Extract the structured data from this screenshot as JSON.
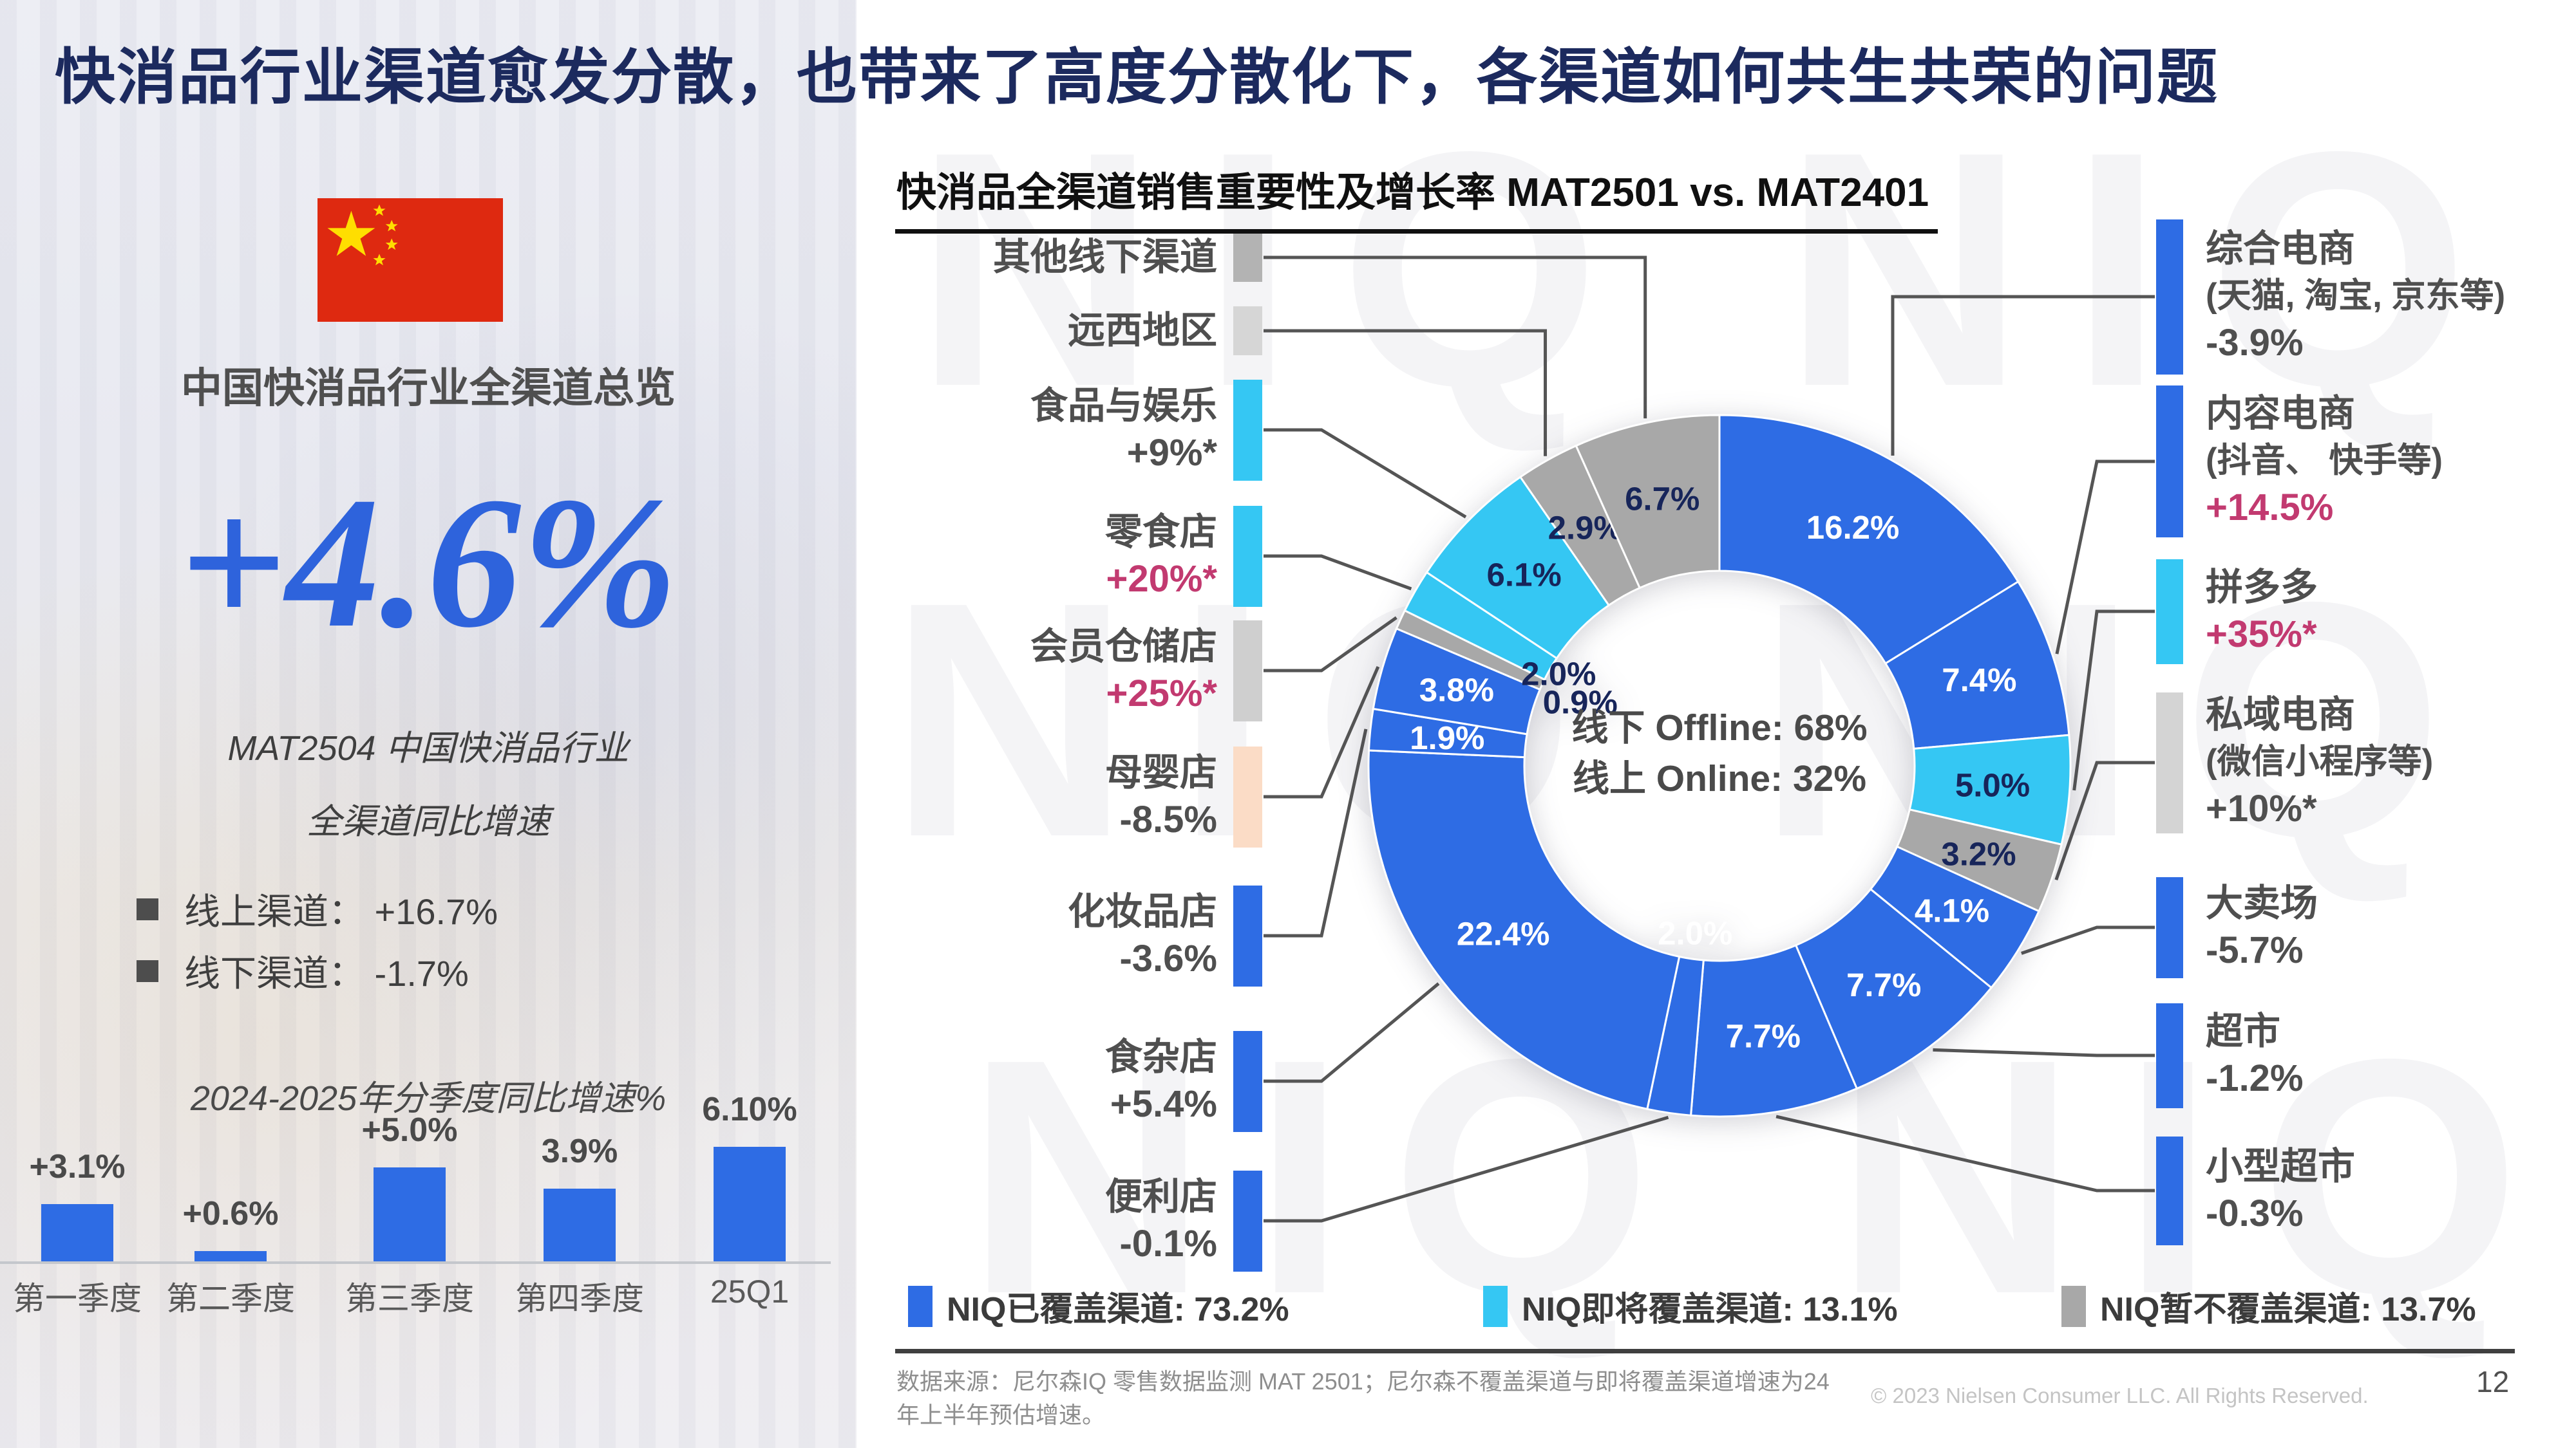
{
  "slide": {
    "title": "快消品行业渠道愈发分散，也带来了高度分散化下，各渠道如何共生共荣的问题",
    "page_number": "12",
    "watermark_text": "NIQ",
    "footer": {
      "source_line1": "数据来源：尼尔森IQ 零售数据监测 MAT 2501；尼尔森不覆盖渠道与即将覆盖渠道增速为24",
      "source_line2": "年上半年预估增速。",
      "copyright": "© 2023 Nielsen Consumer LLC. All Rights Reserved."
    }
  },
  "colors": {
    "covered_blue": "#2e6ce4",
    "upcoming_cyan": "#35c7f3",
    "not_covered_gray": "#a8a8a8",
    "pink_accent": "#c23a70",
    "headline_blue": "#2e63dc",
    "title_navy": "#1c2a5e",
    "label_navy": "#17255a"
  },
  "left_panel": {
    "flag": "china-flag",
    "overview_title": "中国快消品行业全渠道总览",
    "headline_growth": "+4.6%",
    "caption_line1": "MAT2504 中国快消品行业",
    "caption_line2": "全渠道同比增速",
    "bullets": [
      {
        "label": "线上渠道：",
        "value": "+16.7%"
      },
      {
        "label": "线下渠道：",
        "value": "-1.7%"
      }
    ]
  },
  "chart_data": [
    {
      "type": "pie",
      "subtype": "donut",
      "title": "快消品全渠道销售重要性及增长率 MAT2501 vs. MAT2401",
      "units": "%",
      "center_label_line1": "线下 Offline: 68%",
      "center_label_line2": "线上 Online: 32%",
      "start_angle": "top",
      "direction": "clockwise",
      "slices_clockwise_from_top": [
        {
          "name": "综合电商",
          "sub": "(天猫, 淘宝, 京东等)",
          "growth": "-3.9%",
          "growth_pink": false,
          "value": 16.2,
          "group": "covered",
          "swatch": "#2e6ce4",
          "side": "right"
        },
        {
          "name": "内容电商",
          "sub": "(抖音、 快手等)",
          "growth": "+14.5%",
          "growth_pink": true,
          "value": 7.4,
          "group": "covered",
          "swatch": "#2e6ce4",
          "side": "right"
        },
        {
          "name": "拼多多",
          "growth": "+35%*",
          "growth_pink": true,
          "value": 5.0,
          "group": "upcoming",
          "swatch": "#35c7f3",
          "side": "right"
        },
        {
          "name": "私域电商",
          "sub": "(微信小程序等)",
          "growth": "+10%*",
          "growth_pink": false,
          "value": 3.2,
          "group": "not_covered",
          "swatch": "#d4d4d4",
          "side": "right"
        },
        {
          "name": "大卖场",
          "growth": "-5.7%",
          "growth_pink": false,
          "value": 4.1,
          "group": "covered",
          "swatch": "#2e6ce4",
          "side": "right"
        },
        {
          "name": "超市",
          "growth": "-1.2%",
          "growth_pink": false,
          "value": 7.7,
          "group": "covered",
          "swatch": "#2e6ce4",
          "side": "right"
        },
        {
          "name": "小型超市",
          "growth": "-0.3%",
          "growth_pink": false,
          "value": 7.7,
          "group": "covered",
          "swatch": "#2e6ce4",
          "side": "right"
        },
        {
          "name": "便利店",
          "growth": "-0.1%",
          "growth_pink": false,
          "value": 2.0,
          "group": "covered",
          "swatch": "#2e6ce4",
          "side": "left"
        },
        {
          "name": "食杂店",
          "growth": "+5.4%",
          "growth_pink": false,
          "value": 22.4,
          "group": "covered",
          "swatch": "#2e6ce4",
          "side": "left"
        },
        {
          "name": "化妆品店",
          "growth": "-3.6%",
          "growth_pink": false,
          "value": 1.9,
          "group": "covered",
          "swatch": "#2e6ce4",
          "side": "left"
        },
        {
          "name": "母婴店",
          "growth": "-8.5%",
          "growth_pink": false,
          "value": 3.8,
          "group": "covered",
          "swatch": "#fbdcc6",
          "side": "left"
        },
        {
          "name": "会员仓储店",
          "growth": "+25%*",
          "growth_pink": true,
          "value": 0.9,
          "group": "not_covered",
          "swatch": "#cfcfcf",
          "side": "left"
        },
        {
          "name": "零食店",
          "growth": "+20%*",
          "growth_pink": true,
          "value": 2.0,
          "group": "upcoming",
          "swatch": "#35c7f3",
          "side": "left"
        },
        {
          "name": "食品与娱乐",
          "growth": "+9%*",
          "growth_pink": false,
          "value": 6.1,
          "group": "upcoming",
          "swatch": "#35c7f3",
          "side": "left"
        },
        {
          "name": "远西地区",
          "value": 2.9,
          "group": "not_covered",
          "swatch": "#d6d6d6",
          "side": "left"
        },
        {
          "name": "其他线下渠道",
          "value": 6.7,
          "group": "not_covered",
          "swatch": "#b3b3b3",
          "side": "left"
        }
      ],
      "legend": [
        {
          "label": "NIQ已覆盖渠道: 73.2%",
          "group": "covered",
          "color": "#2e6ce4"
        },
        {
          "label": "NIQ即将覆盖渠道: 13.1%",
          "group": "upcoming",
          "color": "#35c7f3"
        },
        {
          "label": "NIQ暂不覆盖渠道: 13.7%",
          "group": "not_covered",
          "color": "#a8a8a8"
        }
      ]
    },
    {
      "type": "bar",
      "title": "2024-2025年分季度同比增速%",
      "categories": [
        "第一季度",
        "第二季度",
        "第三季度",
        "第四季度",
        "25Q1"
      ],
      "values": [
        3.1,
        0.6,
        5.0,
        3.9,
        6.1
      ],
      "labels": [
        "+3.1%",
        "+0.6%",
        "+5.0%",
        "3.9%",
        "6.10%"
      ],
      "ylim": [
        0,
        7
      ],
      "grid": false,
      "bar_color": "#2e6ce4"
    }
  ]
}
